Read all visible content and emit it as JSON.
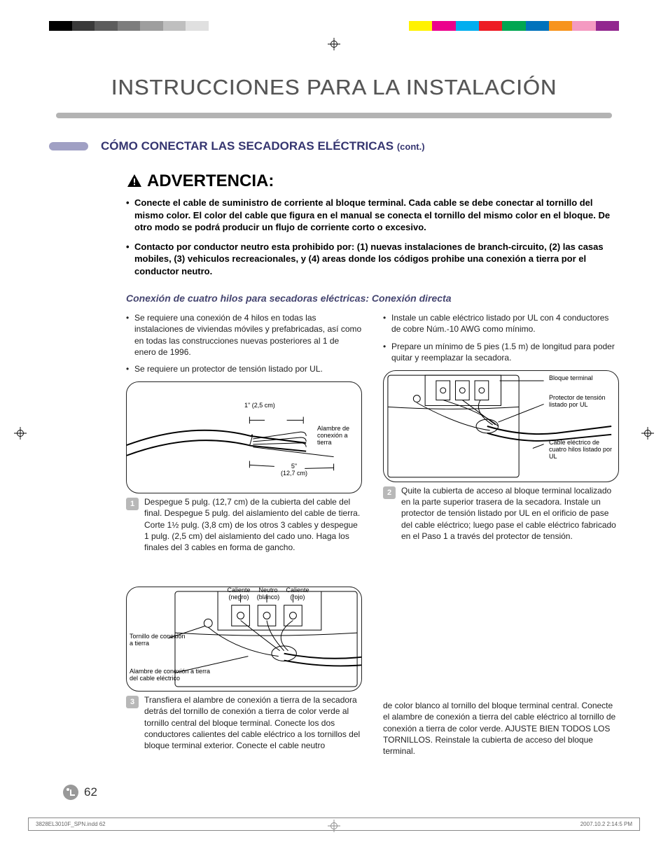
{
  "colorBars": {
    "left": [
      "#000000",
      "#3a3a3a",
      "#5c5c5c",
      "#7d7d7d",
      "#9e9e9e",
      "#bfbfbf",
      "#e0e0e0",
      "#ffffff"
    ],
    "right": [
      "#fff200",
      "#ec008c",
      "#00aeef",
      "#ed1c24",
      "#00a651",
      "#0072bc",
      "#f7941d",
      "#f49ac1",
      "#92278f"
    ]
  },
  "colors": {
    "titleRule": "#b3b3b3",
    "pill": "#a0a0c4",
    "sectionTitle": "#353570",
    "subsection": "#454570"
  },
  "pageTitle": "INSTRUCCIONES PARA LA INSTALACIÓN",
  "section": {
    "title": "CÓMO CONECTAR LAS SECADORAS ELÉCTRICAS",
    "cont": "(cont.)"
  },
  "warning": {
    "heading": "ADVERTENCIA:",
    "items": [
      "Conecte el cable de suministro de corriente al bloque terminal. Cada cable se debe conectar al tornillo del mismo color. El color del cable que figura en el manual se conecta el tornillo del mismo color en el bloque. De otro modo se podrá producir un flujo de corriente corto o excesivo.",
      "Contacto por conductor neutro esta prohibido por: (1) nuevas instalaciones de branch-circuito, (2) las casas mobiles, (3) vehiculos recreacionales, y (4) areas donde los códigos prohibe una conexión a tierra por el conductor neutro."
    ]
  },
  "subsection": "Conexión de cuatro hilos para secadoras eléctricas: Conexión directa",
  "leftBullets": [
    "Se requiere una conexión de 4 hilos en todas las instalaciones de viviendas móviles y prefabricadas, así como en todas las construcciones nuevas posteriores al 1 de enero de 1996.",
    "Se requiere un protector de tensión listado por UL."
  ],
  "rightBullets": [
    "Instale un cable eléctrico listado por UL con 4 conductores de cobre Núm.-10 AWG como mínimo.",
    "Prepare un mínimo de 5 pies (1.5 m) de longitud para poder quitar y reemplazar la secadora."
  ],
  "diagram1": {
    "dim1": "1\"  (2,5 cm)",
    "dim2": "5\"",
    "dim2b": "(12,7 cm)",
    "groundLabel": "Alambre de conexión a tierra"
  },
  "diagram2": {
    "l1": "Bloque terminal",
    "l2": "Protector de tensión listado por UL",
    "l3": "Cable eléctrico de cuatro hilos listado por UL"
  },
  "diagram3": {
    "hot1": "Caliente (negro)",
    "neutral": "Neutro (blanco)",
    "hot2": "Caliente (rojo)",
    "screw": "Tornillo de conexión a tierra",
    "groundWire": "Alambre de conexión a tierra del cable eléctrico"
  },
  "steps": {
    "s1": {
      "num": "1",
      "text": "Despegue 5 pulg. (12,7 cm) de la cubierta del cable del final. Despegue 5 pulg. del aislamiento del cable de tierra. Corte 1½ pulg. (3,8 cm) de los otros 3 cables y despegue 1 pulg. (2,5 cm) del aislamiento del cado uno. Haga los finales del 3 cables en forma de gancho."
    },
    "s2": {
      "num": "2",
      "text": "Quite la cubierta de acceso al bloque terminal localizado en la parte superior trasera de la secadora. Instale un protector de tensión listado por UL en el orificio de pase del cable eléctrico; luego pase el cable eléctrico fabricado en el Paso 1 a través del protector de tensión."
    },
    "s3": {
      "num": "3",
      "text": "Transfiera el alambre de conexión a tierra de la secadora detrás del tornillo de conexión a tierra de color verde al tornillo central del bloque terminal. Conecte los dos conductores calientes del cable eléctrico a los tornillos del bloque terminal exterior. Conecte el cable neutro"
    },
    "s3b": "de color blanco al tornillo del bloque terminal central. Conecte el alambre de conexión a tierra del cable eléctrico al tornillo de conexión a tierra de color verde. AJUSTE BIEN TODOS LOS TORNILLOS. Reinstale la cubierta de acceso del bloque terminal."
  },
  "pageNumber": "62",
  "printFooter": {
    "left": "3828EL3010F_SPN.indd   62",
    "right": "2007.10.2   2:14:5  PM"
  }
}
